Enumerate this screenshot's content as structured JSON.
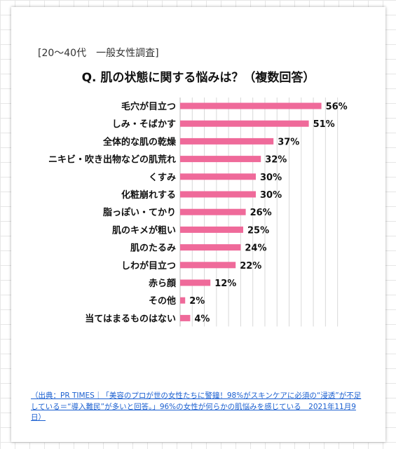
{
  "survey_tag": "[20～40代　一般女性調査]",
  "question": "Q. 肌の状態に関する悩みは？（複数回答）",
  "source_link": "（出典：PR TIMES｜「美容のプロが世の女性たちに警鐘！98%がスキンケアに必須の“浸透”が不足している＝“導入難民”が多いと回答。」96%の女性が何らかの肌悩みを感じている　2021年11月9日）",
  "colors": {
    "bar": "#ef6a9a",
    "grid": "#d8d8d8",
    "text": "#111111"
  },
  "chart_data": {
    "type": "bar",
    "orientation": "horizontal",
    "title": "Q. 肌の状態に関する悩みは？（複数回答）",
    "categories": [
      "毛穴が目立つ",
      "しみ・そばかす",
      "全体的な肌の乾燥",
      "ニキビ・吹き出物などの肌荒れ",
      "くすみ",
      "化粧崩れする",
      "脂っぽい・てかり",
      "肌のキメが粗い",
      "肌のたるみ",
      "しわが目立つ",
      "赤ら顔",
      "その他",
      "当てはまるものはない"
    ],
    "values": [
      56,
      51,
      37,
      32,
      30,
      30,
      26,
      25,
      24,
      22,
      12,
      2,
      4
    ],
    "value_labels": [
      "56%",
      "51%",
      "37%",
      "32%",
      "30%",
      "30%",
      "26%",
      "25%",
      "24%",
      "22%",
      "12%",
      "2%",
      "4%"
    ],
    "unit": "%",
    "xlim": [
      0,
      60
    ],
    "grid": true,
    "legend": "none"
  }
}
